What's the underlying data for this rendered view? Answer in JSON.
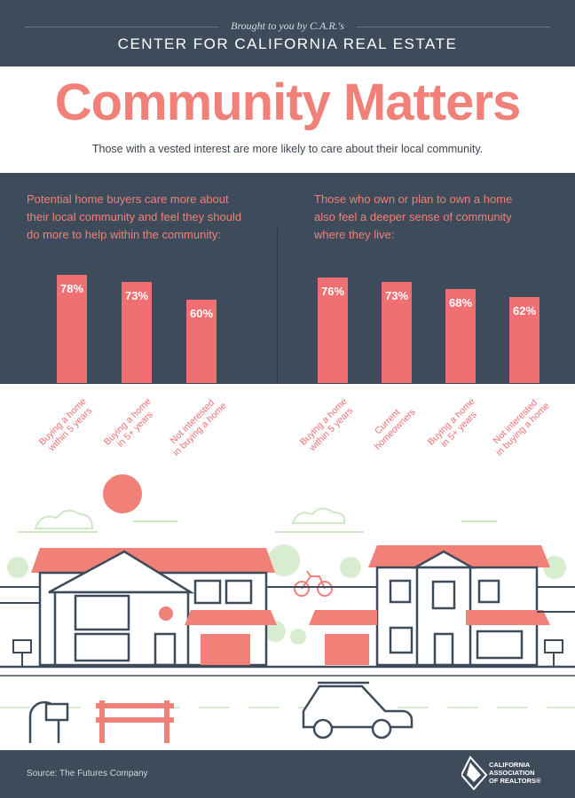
{
  "header": {
    "brought": "Brought to you by C.A.R.'s",
    "center": "CENTER FOR CALIFORNIA REAL ESTATE"
  },
  "title": "Community Matters",
  "subtitle": "Those with a vested interest are more likely to care about their local community.",
  "left_intro": [
    "Potential home buyers care more about",
    "their local community and feel they should",
    "do more to help within the community:"
  ],
  "right_intro": [
    "Those who own or plan to own a home",
    "also feel a deeper sense of community",
    "where they live:"
  ],
  "chart_data": [
    {
      "type": "bar",
      "title": "Potential home buyers care more about their local community and feel they should do more to help within the community:",
      "categories": [
        [
          "Buying a home",
          "within 5 years"
        ],
        [
          "Buying a home",
          "in 5+ years"
        ],
        [
          "Not interested",
          "in buying a home"
        ]
      ],
      "values": [
        78,
        73,
        60
      ],
      "labels": [
        "78%",
        "73%",
        "60%"
      ],
      "unit": "%"
    },
    {
      "type": "bar",
      "title": "Those who own or plan to own a home also feel a deeper sense of community where they live:",
      "categories": [
        [
          "Buying a home",
          "within 5 years"
        ],
        [
          "Current",
          "homeowners"
        ],
        [
          "Buying a home",
          "in 5+ years"
        ],
        [
          "Not interested",
          "in buying a home"
        ]
      ],
      "values": [
        76,
        73,
        68,
        62
      ],
      "labels": [
        "76%",
        "73%",
        "68%",
        "62%"
      ],
      "unit": "%"
    }
  ],
  "footer": {
    "source": "Source: The Futures Company",
    "logo": [
      "CALIFORNIA",
      "ASSOCIATION",
      "OF REALTORS®"
    ]
  },
  "colors": {
    "accent": "#f08078",
    "bar": "#ef6f73",
    "dark": "#3e4b5a"
  }
}
